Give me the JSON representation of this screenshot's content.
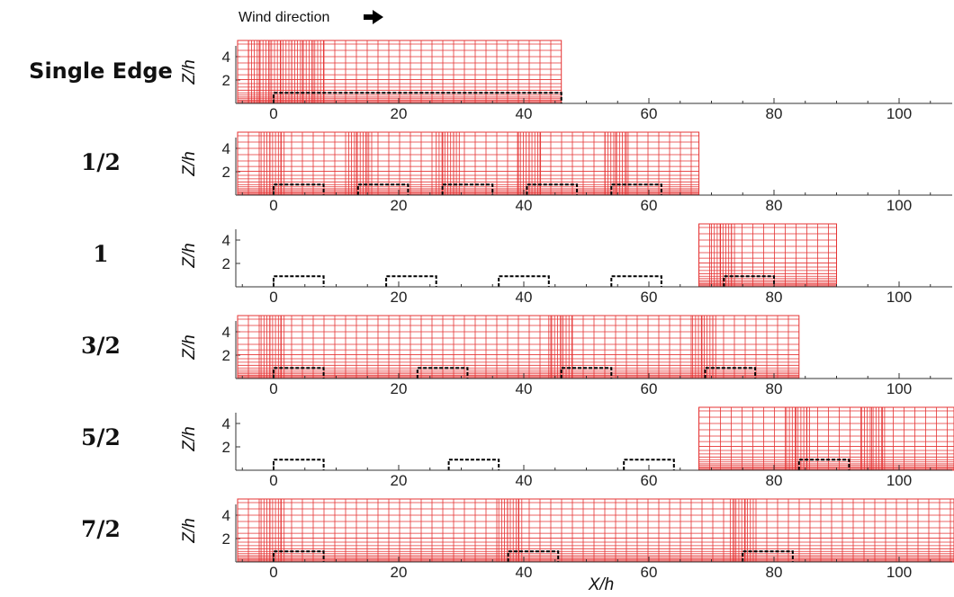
{
  "header": {
    "wind_label": "Wind direction",
    "arrow_icon": "right-arrow-icon"
  },
  "axes": {
    "x_title": "X/h",
    "y_title": "Z/h",
    "x_ticks": [
      "0",
      "20",
      "40",
      "60",
      "80",
      "100"
    ],
    "y_ticks": [
      "2",
      "4"
    ],
    "x_range": [
      -6,
      118
    ],
    "z_range": [
      0,
      5.5
    ]
  },
  "colors": {
    "mesh": "#e53333",
    "building": "#000000",
    "axis": "#333333"
  },
  "cases": [
    {
      "label": "Single Edge",
      "domain": [
        -6,
        46
      ],
      "buildings": [
        [
          0,
          46
        ]
      ],
      "refined": [
        [
          -4,
          8
        ]
      ]
    },
    {
      "label": "1/2",
      "domain": [
        -6,
        68
      ],
      "buildings": [
        [
          0,
          8
        ],
        [
          13.5,
          21.5
        ],
        [
          27,
          35
        ],
        [
          40.5,
          48.5
        ],
        [
          54,
          62
        ]
      ],
      "refined": [
        [
          -2,
          2
        ],
        [
          12,
          16
        ],
        [
          26,
          30
        ],
        [
          39,
          43
        ],
        [
          53,
          57
        ]
      ]
    },
    {
      "label": "1",
      "domain": [
        68,
        90
      ],
      "buildings": [
        [
          0,
          8
        ],
        [
          18,
          26
        ],
        [
          36,
          44
        ],
        [
          54,
          62
        ],
        [
          72,
          80
        ]
      ],
      "refined": [
        [
          70,
          74
        ]
      ]
    },
    {
      "label": "3/2",
      "domain": [
        -6,
        84
      ],
      "buildings": [
        [
          0,
          8
        ],
        [
          23,
          31
        ],
        [
          46,
          54
        ],
        [
          69,
          77
        ]
      ],
      "refined": [
        [
          -2,
          2
        ],
        [
          44,
          48
        ],
        [
          67,
          71
        ]
      ]
    },
    {
      "label": "5/2",
      "domain": [
        68,
        120
      ],
      "buildings": [
        [
          0,
          8
        ],
        [
          28,
          36
        ],
        [
          56,
          64
        ],
        [
          84,
          92
        ]
      ],
      "refined": [
        [
          82,
          86
        ],
        [
          94,
          98
        ]
      ]
    },
    {
      "label": "7/2",
      "domain": [
        -6,
        120
      ],
      "buildings": [
        [
          0,
          8
        ],
        [
          37.5,
          45.5
        ],
        [
          75,
          83
        ]
      ],
      "refined": [
        [
          -2,
          2
        ],
        [
          36,
          40
        ],
        [
          73,
          77
        ]
      ]
    }
  ]
}
